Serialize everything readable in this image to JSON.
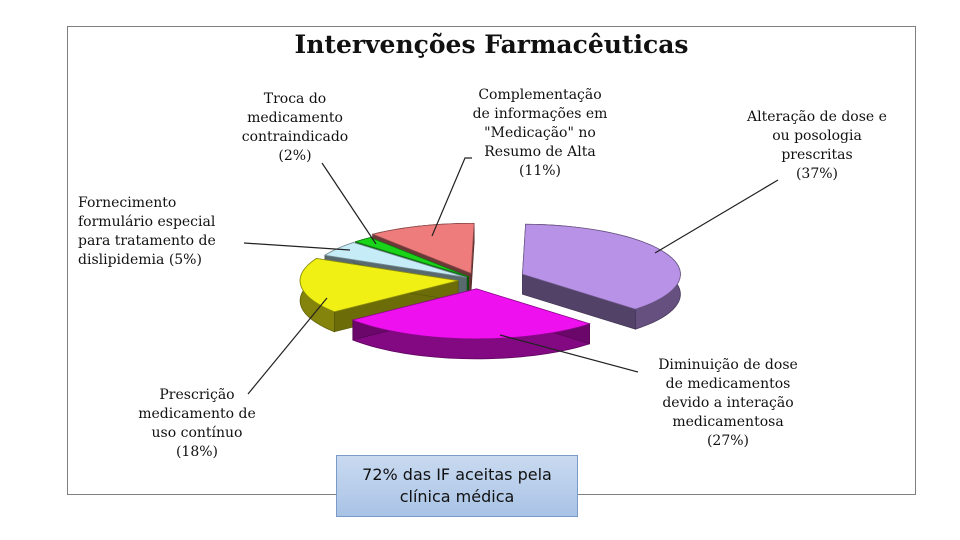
{
  "chart_data": {
    "type": "pie",
    "title": "Intervenções Farmacêuticas",
    "slices": [
      {
        "label": "Alteração de dose e ou posologia prescritas",
        "percent_label": "(37%)",
        "value": 37,
        "color": "#b892e6"
      },
      {
        "label": "Diminuição de dose de medicamentos devido a interação medicamentosa",
        "percent_label": "(27%)",
        "value": 27,
        "color": "#ee10ee"
      },
      {
        "label": "Prescrição medicamento de uso contínuo",
        "percent_label": "(18%)",
        "value": 18,
        "color": "#f0f015"
      },
      {
        "label": "Fornecimento formulário especial para tratamento de dislipidemia",
        "percent_label": "(5%)",
        "value": 5,
        "color": "#c6ecf7"
      },
      {
        "label": "Troca do medicamento contraindicado",
        "percent_label": "(2%)",
        "value": 2,
        "color": "#19d419"
      },
      {
        "label": "Complementação de informações em \"Medicação\" no Resumo de Alta",
        "percent_label": "(11%)",
        "value": 11,
        "color": "#ee7c7c"
      }
    ],
    "labels_text": {
      "alteracao": "Alteração de dose e\nou posologia\nprescritas\n(37%)",
      "diminuicao": "Diminuição de dose\nde medicamentos\ndevido a interação\nmedicamentosa\n(27%)",
      "prescricao": "Prescrição\nmedicamento de\nuso contínuo\n(18%)",
      "fornecimento": "Fornecimento\nformulário especial\npara tratamento de\ndislipidemia  (5%)",
      "troca": "Troca do\nmedicamento\ncontraindicado\n(2%)",
      "complementacao": "Complementação\nde informações em\n\"Medicação\" no\nResumo de Alta\n(11%)"
    },
    "legend": "none"
  },
  "note": {
    "text": "72% das IF aceitas pela clínica médica"
  }
}
